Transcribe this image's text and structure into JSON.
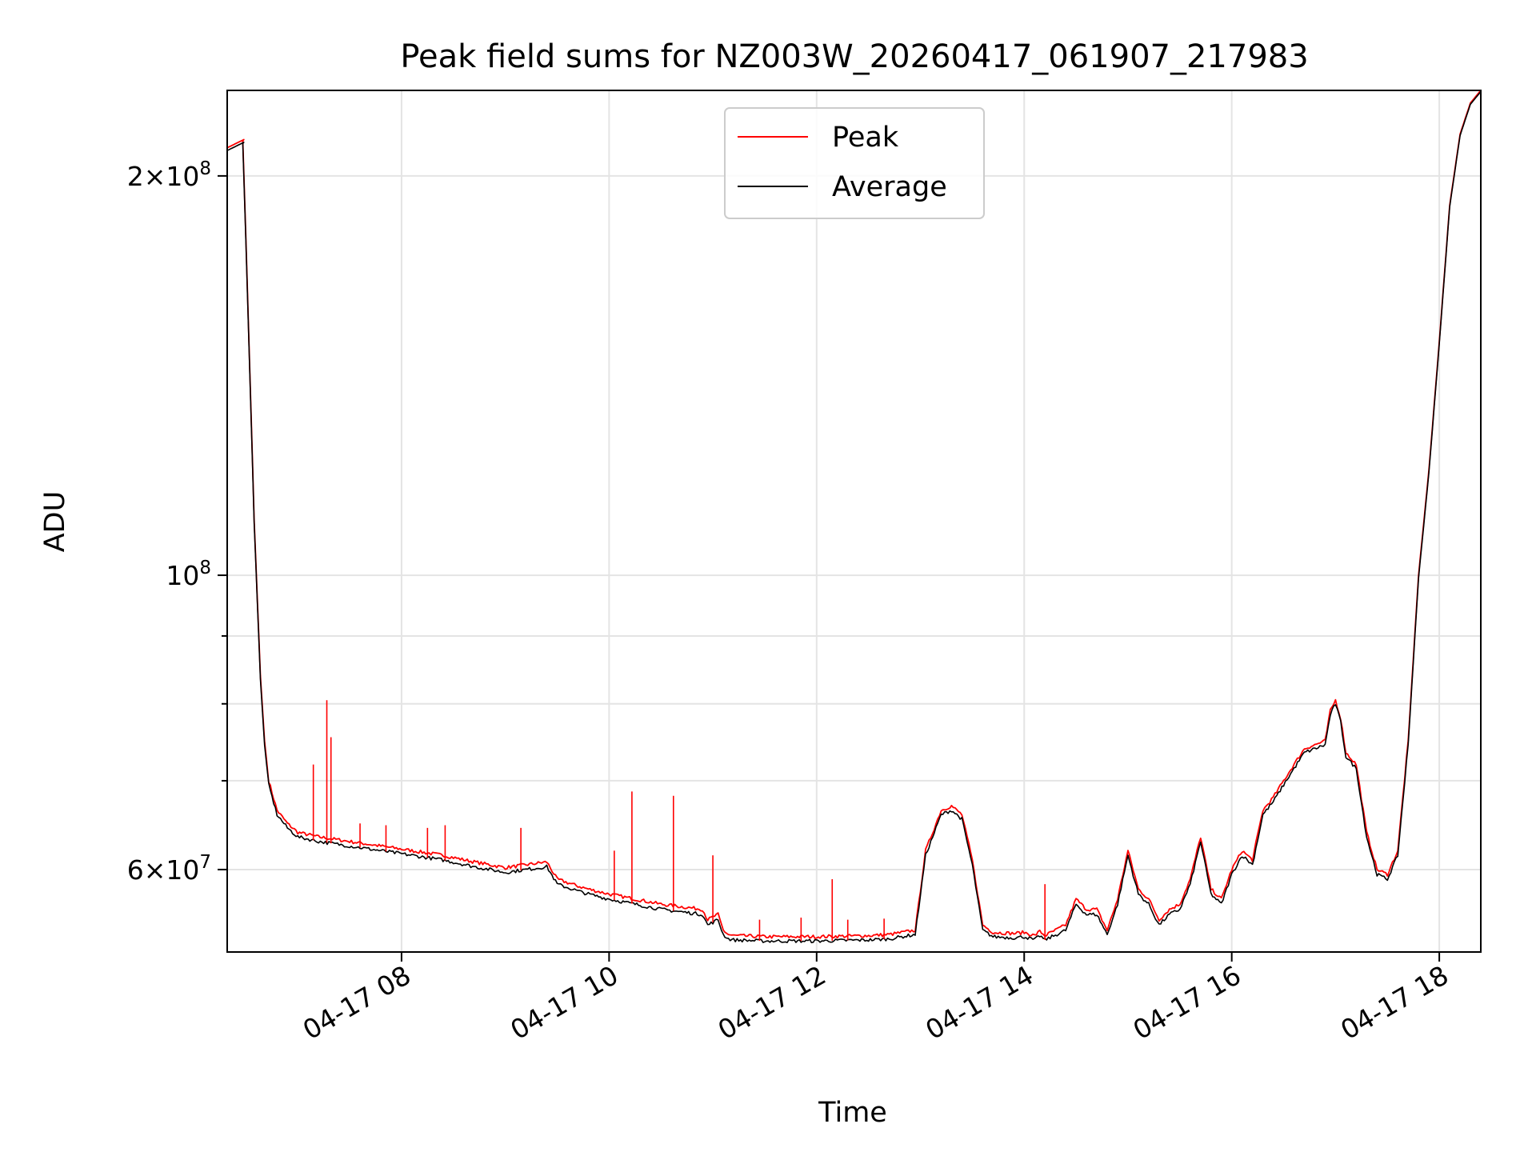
{
  "chart_data": {
    "type": "line",
    "title": "Peak field sums for NZ003W_20260417_061907_217983",
    "xlabel": "Time",
    "ylabel": "ADU",
    "y_scale": "log",
    "ylim": [
      52000000,
      232000000
    ],
    "xlim_hours": [
      6.32,
      18.4
    ],
    "grid": true,
    "legend_location": "upper center",
    "x_ticks": [
      {
        "value": 8,
        "label": "04-17 08"
      },
      {
        "value": 10,
        "label": "04-17 10"
      },
      {
        "value": 12,
        "label": "04-17 12"
      },
      {
        "value": 14,
        "label": "04-17 14"
      },
      {
        "value": 16,
        "label": "04-17 16"
      },
      {
        "value": 18,
        "label": "04-17 18"
      }
    ],
    "y_ticks": [
      {
        "value": 200000000,
        "mantissa": "2",
        "exponent": "8"
      },
      {
        "value": 100000000,
        "mantissa": "",
        "exponent": "8"
      },
      {
        "value": 60000000,
        "mantissa": "6",
        "exponent": "7"
      }
    ],
    "y_minor_ticks": [
      70000000,
      80000000,
      90000000
    ],
    "series": [
      {
        "name": "Peak",
        "color": "#ff0000",
        "x": [
          6.32,
          6.48,
          6.47,
          6.5,
          6.58,
          6.64,
          6.68,
          6.72,
          6.8,
          6.9,
          7.0,
          7.2,
          7.5,
          7.8,
          8.1,
          8.4,
          8.7,
          9.0,
          9.2,
          9.4,
          9.5,
          9.7,
          9.8,
          10.0,
          10.5,
          10.9,
          10.95,
          11.05,
          11.1,
          11.15,
          11.2,
          11.5,
          12.0,
          12.5,
          12.7,
          12.95,
          13.05,
          13.2,
          13.3,
          13.4,
          13.5,
          13.6,
          13.7,
          13.9,
          14.0,
          14.1,
          14.15,
          14.2,
          14.4,
          14.5,
          14.6,
          14.7,
          14.8,
          14.9,
          15.0,
          15.1,
          15.2,
          15.3,
          15.4,
          15.5,
          15.6,
          15.7,
          15.8,
          15.9,
          16.0,
          16.1,
          16.2,
          16.3,
          16.4,
          16.5,
          16.6,
          16.7,
          16.8,
          16.9,
          16.95,
          17.0,
          17.05,
          17.1,
          17.2,
          17.3,
          17.4,
          17.5,
          17.6,
          17.7,
          17.8,
          17.9,
          18.0,
          18.1,
          18.2,
          18.3,
          18.4
        ],
        "y": [
          210000000,
          213000000,
          212500000,
          180000000,
          110000000,
          84000000,
          75000000,
          70000000,
          66500000,
          65000000,
          64000000,
          63500000,
          63000000,
          62500000,
          62000000,
          61500000,
          60800000,
          60200000,
          60500000,
          60800000,
          59000000,
          58300000,
          58000000,
          57500000,
          56500000,
          56000000,
          55000000,
          55500000,
          54000000,
          53600000,
          53500000,
          53400000,
          53400000,
          53500000,
          53600000,
          54000000,
          62000000,
          66500000,
          67000000,
          66000000,
          61000000,
          54500000,
          53800000,
          53700000,
          53800000,
          53500000,
          53900000,
          53500000,
          54500000,
          57000000,
          56000000,
          56000000,
          54000000,
          57000000,
          62000000,
          58000000,
          57000000,
          55000000,
          56000000,
          56500000,
          59000000,
          63500000,
          58000000,
          57000000,
          60000000,
          62000000,
          61000000,
          66500000,
          68000000,
          70000000,
          72000000,
          74000000,
          74500000,
          75000000,
          79000000,
          80500000,
          78000000,
          73500000,
          72000000,
          64000000,
          60000000,
          59500000,
          62000000,
          75000000,
          100000000,
          120000000,
          150000000,
          190000000,
          215000000,
          227000000,
          232000000
        ]
      },
      {
        "name": "Average",
        "color": "#000000",
        "x": [
          6.32,
          6.48,
          6.47,
          6.5,
          6.58,
          6.64,
          6.68,
          6.72,
          6.8,
          6.9,
          7.0,
          7.2,
          7.5,
          7.8,
          8.1,
          8.4,
          8.7,
          9.0,
          9.2,
          9.4,
          9.5,
          9.7,
          9.8,
          10.0,
          10.5,
          10.9,
          10.95,
          11.05,
          11.1,
          11.15,
          11.2,
          11.5,
          12.0,
          12.5,
          12.7,
          12.95,
          13.05,
          13.2,
          13.3,
          13.4,
          13.5,
          13.6,
          13.7,
          13.9,
          14.0,
          14.1,
          14.15,
          14.2,
          14.4,
          14.5,
          14.6,
          14.7,
          14.8,
          14.9,
          15.0,
          15.1,
          15.2,
          15.3,
          15.4,
          15.5,
          15.6,
          15.7,
          15.8,
          15.9,
          16.0,
          16.1,
          16.2,
          16.3,
          16.4,
          16.5,
          16.6,
          16.7,
          16.8,
          16.9,
          16.95,
          17.0,
          17.05,
          17.1,
          17.2,
          17.3,
          17.4,
          17.5,
          17.6,
          17.7,
          17.8,
          17.9,
          18.0,
          18.1,
          18.2,
          18.3,
          18.4
        ],
        "y": [
          209000000,
          212000000,
          211500000,
          179000000,
          109500000,
          83500000,
          74500000,
          69500000,
          66000000,
          64500000,
          63500000,
          63000000,
          62500000,
          62000000,
          61500000,
          61000000,
          60300000,
          59700000,
          60000000,
          60300000,
          58500000,
          57800000,
          57500000,
          57000000,
          56000000,
          55500000,
          54500000,
          55000000,
          53600000,
          53200000,
          53100000,
          53000000,
          53000000,
          53100000,
          53200000,
          53600000,
          61500000,
          66000000,
          66500000,
          65500000,
          60500000,
          54000000,
          53400000,
          53300000,
          53400000,
          53100000,
          53500000,
          53100000,
          54000000,
          56500000,
          55500000,
          55500000,
          53600000,
          56500000,
          61500000,
          57500000,
          56500000,
          54500000,
          55500000,
          56000000,
          58500000,
          63000000,
          57500000,
          56500000,
          59500000,
          61500000,
          60500000,
          66000000,
          67500000,
          69500000,
          71500000,
          73500000,
          74000000,
          74500000,
          78500000,
          80000000,
          77500000,
          73000000,
          71500000,
          63500000,
          59500000,
          59000000,
          61500000,
          74500000,
          99500000,
          119500000,
          149500000,
          189500000,
          214500000,
          226500000,
          231500000
        ]
      }
    ],
    "spikes": [
      {
        "x": 7.15,
        "y": 72000000
      },
      {
        "x": 7.28,
        "y": 80500000
      },
      {
        "x": 7.32,
        "y": 75500000
      },
      {
        "x": 7.6,
        "y": 65000000
      },
      {
        "x": 7.85,
        "y": 64800000
      },
      {
        "x": 8.25,
        "y": 64500000
      },
      {
        "x": 8.42,
        "y": 64800000
      },
      {
        "x": 9.15,
        "y": 64500000
      },
      {
        "x": 10.22,
        "y": 68700000
      },
      {
        "x": 10.62,
        "y": 68200000
      },
      {
        "x": 10.05,
        "y": 62000000
      },
      {
        "x": 11.0,
        "y": 61500000
      },
      {
        "x": 12.15,
        "y": 59000000
      },
      {
        "x": 11.85,
        "y": 55200000
      },
      {
        "x": 12.3,
        "y": 55000000
      },
      {
        "x": 14.2,
        "y": 58500000
      },
      {
        "x": 11.45,
        "y": 55000000
      },
      {
        "x": 12.65,
        "y": 55100000
      }
    ]
  },
  "legend": [
    {
      "label": "Peak",
      "color": "#ff0000"
    },
    {
      "label": "Average",
      "color": "#000000"
    }
  ]
}
